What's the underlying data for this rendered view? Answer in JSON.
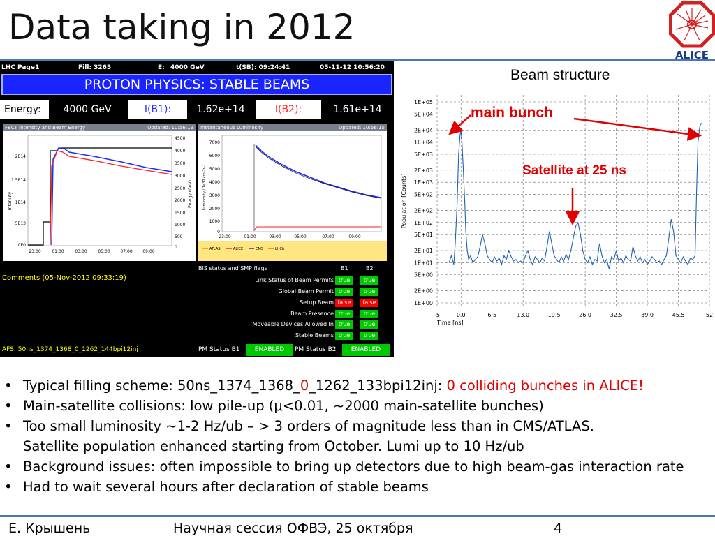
{
  "slide": {
    "title": "Data taking in 2012",
    "logo_text": "ALICE"
  },
  "lhc_page": {
    "header": {
      "page": "LHC Page1",
      "fill": "Fill: 3265",
      "e_label": "E:",
      "e_value": "4000 GeV",
      "tsb": "t(SB): 09:24:41",
      "datetime": "05-11-12 10:56:20"
    },
    "banner": "PROTON PHYSICS: STABLE BEAMS",
    "energy_label": "Energy:",
    "energy_value": "4000 GeV",
    "ib1_label": "I(B1):",
    "ib1_value": "1.62e+14",
    "ib2_label": "I(B2):",
    "ib2_value": "1.61e+14",
    "fbct_panel": {
      "title": "FBCT Intensity and Beam Energy",
      "updated": "Updated: 10:56:19",
      "y_left_label": "Intensity",
      "y_right_label": "Energy (GeV)",
      "y_left_ticks": [
        "2E14",
        "1.5E14",
        "1E14",
        "5E13",
        "0E0"
      ],
      "y_right_ticks": [
        "4500",
        "4000",
        "3500",
        "3000",
        "2500",
        "2000",
        "1500",
        "1000",
        "500",
        "0"
      ],
      "x_ticks": [
        "23:00",
        "01:00",
        "03:00",
        "05:00",
        "07:00",
        "09:00"
      ]
    },
    "lumi_panel": {
      "title": "Instantaneous Luminosity",
      "updated": "Updated: 10:56:15",
      "y_label": "Luminosity / 1e30 cm-2s-1",
      "y_ticks": [
        "7000",
        "6000",
        "5000",
        "4000",
        "3000",
        "2000",
        "1000",
        "0"
      ],
      "x_ticks": [
        "23:00",
        "01:00",
        "03:00",
        "05:00",
        "07:00",
        "09:00"
      ],
      "legend": [
        "ATLAS",
        "ALICE",
        "CMS",
        "LHCb"
      ]
    },
    "bis": {
      "header": "BIS status and SMP flags",
      "b1": "B1",
      "b2": "B2",
      "flags": [
        {
          "name": "Link Status of Beam Permits",
          "b1": "true",
          "b2": "true"
        },
        {
          "name": "Global Beam Permit",
          "b1": "true",
          "b2": "true"
        },
        {
          "name": "Setup Beam",
          "b1": "false",
          "b2": "false"
        },
        {
          "name": "Beam Presence",
          "b1": "true",
          "b2": "true"
        },
        {
          "name": "Moveable Devices Allowed In",
          "b1": "true",
          "b2": "true"
        },
        {
          "name": "Stable Beams",
          "b1": "true",
          "b2": "true"
        }
      ]
    },
    "comments": "Comments (05-Nov-2012 09:33:19)",
    "afs": "AFS: 50ns_1374_1368_0_1262_144bpi12inj",
    "pm_b1_label": "PM Status B1",
    "pm_b1_value": "ENABLED",
    "pm_b2_label": "PM Status B2",
    "pm_b2_value": "ENABLED"
  },
  "beam_structure": {
    "title": "Beam structure",
    "annotation_main": "main bunch",
    "annotation_satellite": "Satellite at 25 ns",
    "colors": {
      "trace": "#2060b0",
      "annotation": "#e00000"
    }
  },
  "chart_data": {
    "type": "line",
    "title": "Beam structure",
    "xlabel": "Time [ns]",
    "ylabel": "Population [Counts]",
    "x_ticks": [
      "-5",
      "0.0",
      "6.5",
      "13.0",
      "19.5",
      "26.0",
      "32.5",
      "39.0",
      "45.5",
      "52"
    ],
    "y_ticks": [
      "1E+05",
      "5E+04",
      "2E+04",
      "1E+04",
      "5E+03",
      "2E+03",
      "1E+03",
      "5E+02",
      "2E+02",
      "1E+02",
      "5E+01",
      "2E+01",
      "1E+01",
      "5E+00",
      "2E+00",
      "1E+00"
    ],
    "xlim": [
      -5,
      52
    ],
    "ylim": [
      1,
      100000
    ],
    "y_scale": "log",
    "grid": true,
    "series": [
      {
        "x": [
          -2.5,
          -2.0,
          -1.5,
          -1.2,
          -0.8,
          -0.5,
          -0.2,
          0.0,
          0.2,
          0.5,
          0.8,
          1.0,
          1.3,
          1.6,
          2.0,
          2.5,
          3.0,
          3.5,
          4.0,
          4.5,
          5.0,
          5.5,
          6.0,
          6.5,
          7.0,
          7.5,
          8.0,
          8.5,
          9.0,
          9.5,
          10.0,
          10.5,
          11.0,
          11.5,
          12.0,
          12.5,
          13.0,
          13.5,
          14.0,
          14.5,
          15.0,
          15.5,
          16.0,
          16.5,
          17.0,
          17.5,
          18.0,
          18.5,
          19.0,
          19.5,
          20.0,
          20.5,
          21.0,
          21.5,
          22.0,
          22.5,
          23.0,
          23.5,
          24.0,
          24.5,
          25.0,
          25.5,
          26.0,
          26.5,
          27.0,
          27.5,
          28.0,
          28.5,
          29.0,
          29.5,
          30.0,
          30.5,
          31.0,
          31.5,
          32.0,
          32.5,
          33.0,
          33.5,
          34.0,
          34.5,
          35.0,
          35.5,
          36.0,
          36.5,
          37.0,
          37.5,
          38.0,
          38.5,
          39.0,
          39.5,
          40.0,
          40.5,
          41.0,
          41.5,
          42.0,
          42.5,
          43.0,
          43.5,
          44.0,
          44.5,
          45.0,
          45.5,
          46.0,
          46.5,
          47.0,
          47.5,
          48.0,
          48.5,
          49.0,
          49.3,
          49.6,
          50.0,
          50.3
        ],
        "y": [
          10,
          15,
          9,
          30,
          300,
          5000,
          15000,
          20000,
          10000,
          2000,
          300,
          60,
          20,
          12,
          15,
          10,
          12,
          14,
          25,
          50,
          30,
          15,
          12,
          10,
          14,
          11,
          13,
          9,
          15,
          12,
          20,
          14,
          11,
          12,
          10,
          11,
          10,
          15,
          20,
          12,
          9,
          14,
          12,
          10,
          13,
          11,
          25,
          60,
          30,
          15,
          12,
          10,
          14,
          11,
          16,
          12,
          20,
          40,
          80,
          100,
          50,
          20,
          12,
          10,
          14,
          9,
          12,
          11,
          30,
          15,
          10,
          12,
          7,
          14,
          12,
          20,
          11,
          13,
          10,
          15,
          12,
          11,
          25,
          15,
          11,
          14,
          10,
          12,
          9,
          11,
          14,
          12,
          10,
          11,
          9,
          12,
          15,
          40,
          120,
          60,
          15,
          12,
          10,
          14,
          11,
          9,
          13,
          12,
          15,
          500,
          10000,
          25000,
          30000
        ]
      }
    ]
  },
  "bullets": [
    {
      "parts": [
        "Typical filling scheme: 50ns_1374_1368_",
        "0",
        "_1262_133bpi12inj: ",
        "0 colliding bunches in ALICE!"
      ]
    },
    {
      "text": "Main-satellite collisions: low pile-up (μ<0.01, ~2000 main-satellite bunches)"
    },
    {
      "text": "Too small luminosity ~1-2 Hz/ub – > 3 orders of magnitude less than in CMS/ATLAS."
    },
    {
      "text": "Satellite population enhanced starting from October. Lumi up to 10 Hz/ub"
    },
    {
      "text": "Background issues: often impossible to bring up detectors due to high beam-gas interaction rate"
    },
    {
      "text": "Had to wait several hours after declaration of stable beams"
    }
  ],
  "footer": {
    "author": "Е. Крышень",
    "event": "Научная сессия ОФВЭ, 25 октября",
    "page": "4"
  }
}
